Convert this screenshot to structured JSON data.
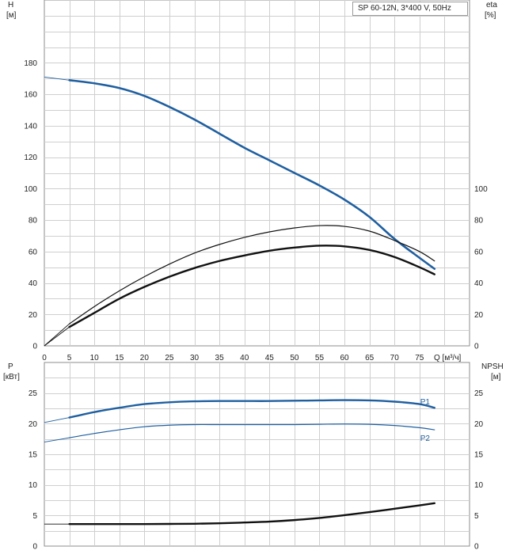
{
  "legend": "SP 60-12N, 3*400 V, 50Hz",
  "chart_data": [
    {
      "type": "line",
      "xlabel": "Q [м³/ч]",
      "xlim": [
        0,
        85
      ],
      "x_ticks": [
        "0",
        "5",
        "10",
        "15",
        "20",
        "25",
        "30",
        "35",
        "40",
        "45",
        "50",
        "55",
        "60",
        "65",
        "70",
        "75"
      ],
      "ylabel": "H\n[м]",
      "ylim": [
        0,
        220
      ],
      "y_ticks": [
        "0",
        "20",
        "40",
        "60",
        "80",
        "100",
        "120",
        "140",
        "160",
        "180"
      ],
      "y2label": "eta\n[%]",
      "y2_ticks": [
        "0",
        "20",
        "40",
        "60",
        "80",
        "100"
      ],
      "grid": true,
      "series": [
        {
          "axis": "left",
          "color": "#1f5fa0",
          "width": 2.6,
          "x": [
            5,
            10,
            15,
            20,
            25,
            30,
            35,
            40,
            45,
            50,
            55,
            60,
            65,
            70,
            75,
            78
          ],
          "y": [
            169,
            167,
            164,
            159,
            152,
            144,
            135,
            126,
            118,
            110,
            102,
            93,
            82,
            68,
            56,
            49
          ],
          "ext_x": [
            0,
            5
          ],
          "ext_y": [
            171,
            169
          ]
        },
        {
          "axis": "right",
          "color": "#111111",
          "width": 1.2,
          "x": [
            5,
            10,
            15,
            20,
            25,
            30,
            35,
            40,
            45,
            50,
            55,
            60,
            65,
            70,
            75,
            78
          ],
          "y": [
            14,
            25,
            35,
            44,
            52,
            59,
            64.5,
            69,
            72.5,
            75,
            76.5,
            76,
            73,
            67,
            60,
            54
          ],
          "ext_x": [
            0,
            5
          ],
          "ext_y": [
            0,
            14
          ]
        },
        {
          "axis": "right",
          "color": "#111111",
          "width": 2.4,
          "x": [
            5,
            10,
            15,
            20,
            25,
            30,
            35,
            40,
            45,
            50,
            55,
            60,
            65,
            70,
            75,
            78
          ],
          "y": [
            12,
            21,
            30,
            37.5,
            44,
            49.5,
            54,
            57.5,
            60.5,
            62.5,
            63.7,
            63.3,
            61,
            56.5,
            50,
            45.5
          ],
          "ext_x": [
            0,
            5
          ],
          "ext_y": [
            0,
            12
          ]
        }
      ]
    },
    {
      "type": "line",
      "xlim": [
        0,
        85
      ],
      "ylabel": "P\n[кВт]",
      "ylim": [
        0,
        30
      ],
      "y_ticks": [
        "0",
        "5",
        "10",
        "15",
        "20",
        "25"
      ],
      "y2label": "NPSH\n[м]",
      "y2_ticks": [
        "0",
        "5",
        "10",
        "15",
        "20",
        "25"
      ],
      "grid": true,
      "series": [
        {
          "name": "P1",
          "axis": "left",
          "color": "#1f5fa0",
          "width": 2.4,
          "x": [
            5,
            10,
            15,
            20,
            25,
            30,
            35,
            40,
            45,
            50,
            55,
            60,
            65,
            70,
            75,
            78
          ],
          "y": [
            21.0,
            21.9,
            22.6,
            23.2,
            23.5,
            23.65,
            23.7,
            23.7,
            23.7,
            23.75,
            23.8,
            23.85,
            23.8,
            23.6,
            23.2,
            22.6
          ],
          "ext_x": [
            0,
            5
          ],
          "ext_y": [
            20.2,
            21.0
          ]
        },
        {
          "name": "P2",
          "axis": "left",
          "color": "#1f5fa0",
          "width": 1.2,
          "x": [
            5,
            10,
            15,
            20,
            25,
            30,
            35,
            40,
            45,
            50,
            55,
            60,
            65,
            70,
            75,
            78
          ],
          "y": [
            17.7,
            18.4,
            19.0,
            19.5,
            19.75,
            19.85,
            19.85,
            19.85,
            19.85,
            19.85,
            19.9,
            19.95,
            19.9,
            19.7,
            19.35,
            19.0
          ],
          "ext_x": [
            0,
            5
          ],
          "ext_y": [
            17.0,
            17.7
          ]
        },
        {
          "axis": "right",
          "color": "#111111",
          "width": 2.4,
          "x": [
            5,
            10,
            15,
            20,
            25,
            30,
            35,
            40,
            45,
            50,
            55,
            60,
            65,
            70,
            75,
            78
          ],
          "y": [
            3.6,
            3.6,
            3.6,
            3.6,
            3.62,
            3.65,
            3.72,
            3.85,
            4.0,
            4.25,
            4.6,
            5.05,
            5.55,
            6.1,
            6.65,
            7.0
          ],
          "ext_x": [
            0,
            5
          ],
          "ext_y": [
            3.6,
            3.6
          ]
        }
      ]
    }
  ]
}
